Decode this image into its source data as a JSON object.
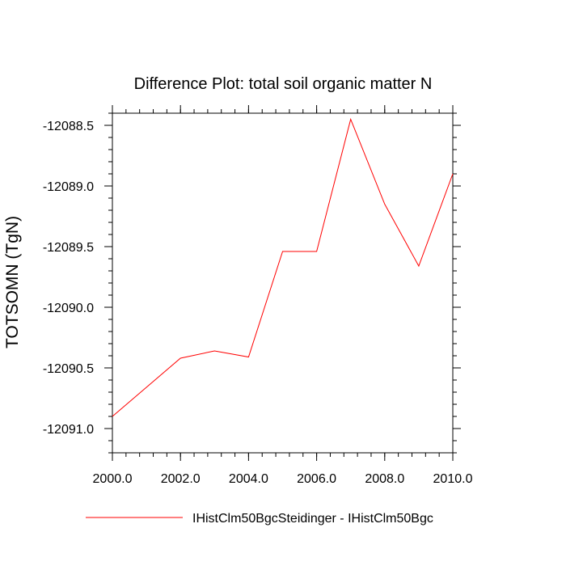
{
  "chart_data": {
    "type": "line",
    "title": "Difference Plot: total soil organic matter N",
    "xlabel": "",
    "ylabel": "TOTSOMN  (TgN)",
    "xlim": [
      2000.0,
      2010.0
    ],
    "ylim": [
      -12091.2,
      -12088.4
    ],
    "x_ticks": [
      2000.0,
      2002.0,
      2004.0,
      2006.0,
      2008.0,
      2010.0
    ],
    "x_tick_labels": [
      "2000.0",
      "2002.0",
      "2004.0",
      "2006.0",
      "2008.0",
      "2010.0"
    ],
    "y_ticks": [
      -12088.5,
      -12089.0,
      -12089.5,
      -12090.0,
      -12090.5,
      -12091.0
    ],
    "y_tick_labels": [
      "-12088.5",
      "-12089.0",
      "-12089.5",
      "-12090.0",
      "-12090.5",
      "-12091.0"
    ],
    "grid": false,
    "legend_position": "bottom",
    "series": [
      {
        "name": "IHistClm50BgcSteidinger - IHistClm50Bgc",
        "color": "#ff0000",
        "x": [
          2000,
          2001,
          2002,
          2003,
          2004,
          2005,
          2006,
          2007,
          2008,
          2009,
          2010
        ],
        "y": [
          -12090.9,
          -12090.66,
          -12090.42,
          -12090.36,
          -12090.41,
          -12089.54,
          -12089.54,
          -12088.45,
          -12089.15,
          -12089.66,
          -12088.9
        ]
      }
    ]
  }
}
